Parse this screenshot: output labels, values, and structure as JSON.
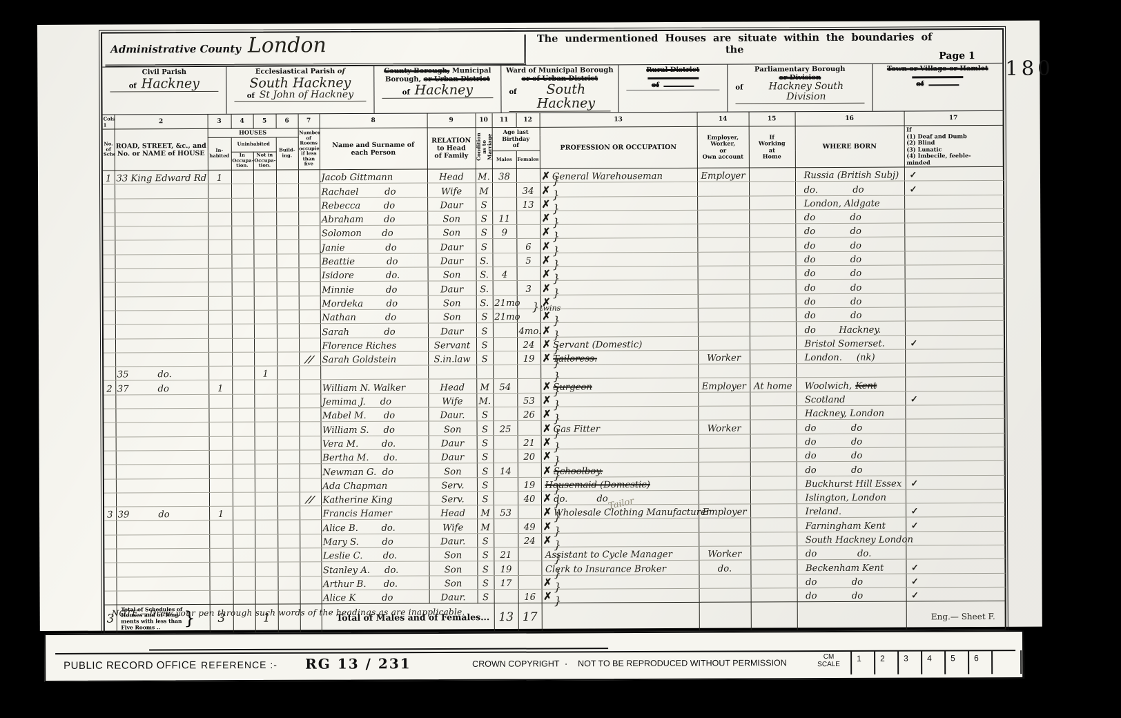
{
  "stamp": "180",
  "header": {
    "admin_label": "Administrative County",
    "admin_value": "London",
    "undermentioned": "The undermentioned Houses are situate within the boundaries of the",
    "page": "Page 1",
    "civil_label": "Civil Parish",
    "civil_of": "of",
    "civil_value": "Hackney",
    "eccl_label": "Ecclesiastical Parish",
    "eccl_of": "of",
    "eccl_value": "South Hackney",
    "eccl_of2": "of",
    "eccl_value2": "St John of Hackney",
    "borough_struck1": "County Borough,",
    "borough_label": "Municipal",
    "borough_label2": "Borough,",
    "borough_struck2": "or Urban District",
    "borough_of": "of",
    "borough_value": "Hackney",
    "ward_label": "Ward of Municipal Borough",
    "ward_struck": "or of Urban District",
    "ward_of": "of",
    "ward_value": "South Hackney",
    "rural_struck": "Rural District",
    "rural_of": "of",
    "parl_label": "Parliamentary Borough",
    "parl_struck": "or Division",
    "parl_of": "of",
    "parl_value": "Hackney South Division",
    "town_struck": "Town or Village or Hamlet",
    "town_of": "of"
  },
  "table": {
    "colnums": [
      "Cols 1",
      "2",
      "3",
      "4",
      "5",
      "6",
      "7",
      "8",
      "9",
      "10",
      "11",
      "12",
      "13",
      "14",
      "15",
      "16",
      "17"
    ],
    "headers": {
      "schedule": "No. of\nSchedule",
      "road": "ROAD, STREET, &c., and\nNo. or NAME of HOUSE",
      "houses": "HOUSES",
      "inhabited": "In-\nhabited",
      "uninhabited": "Uninhabited",
      "in_occ": "In\nOccupa-\ntion.",
      "not_occ": "Not in\nOccupa-\ntion.",
      "building": "Build-ing.",
      "rooms": "Number\nof Rooms\noccupied\nif less\nthan five",
      "name": "Name and Surname of\neach Person",
      "relation": "RELATION\nto Head\nof Family",
      "condition": "Condition\nas to\nMarriage",
      "age": "Age last\nBirthday\nof",
      "males": "Males",
      "females": "Females",
      "profession": "PROFESSION OR OCCUPATION",
      "employer": "Employer,\nWorker,\nor\nOwn account",
      "at_home": "If\nWorking\nat\nHome",
      "born": "WHERE BORN",
      "infirm": "If\n(1) Deaf and Dumb\n(2) Blind\n(3) Lunatic\n(4) Imbecile, feeble-\n      minded"
    },
    "rows": [
      {
        "s": "1",
        "a": "33 King Edward Rd",
        "ih": "1",
        "n": "Jacob Gittmann",
        "r": "Head",
        "c": "M.",
        "m": "38",
        "x": "✗",
        "p": "General Warehouseman",
        "e": "Employer",
        "b": "Russia (British Subj)",
        "t": "✓"
      },
      {
        "n": "Rachael         do",
        "r": "Wife",
        "c": "M",
        "f": "34",
        "x": "✗",
        "b": "do.            do",
        "t": "✓"
      },
      {
        "n": "Rebecca        do",
        "r": "Daur",
        "c": "S",
        "f": "13",
        "x": "✗",
        "b": "London, Aldgate"
      },
      {
        "n": "Abraham       do",
        "r": "Son",
        "c": "S",
        "m": "11",
        "x": "✗",
        "b": "do            do"
      },
      {
        "n": "Solomon       do",
        "r": "Son",
        "c": "S",
        "m": "9",
        "x": "✗",
        "b": "do            do"
      },
      {
        "n": "Janie              do",
        "r": "Daur",
        "c": "S",
        "f": "6",
        "x": "✗",
        "b": "do            do"
      },
      {
        "n": "Beattie           do",
        "r": "Daur",
        "c": "S.",
        "f": "5",
        "x": "✗",
        "b": "do            do"
      },
      {
        "n": "Isidore           do.",
        "r": "Son",
        "c": "S.",
        "m": "4",
        "x": "✗",
        "b": "do            do"
      },
      {
        "n": "Minnie           do",
        "r": "Daur",
        "c": "S.",
        "f": "3",
        "x": "✗",
        "b": "do            do"
      },
      {
        "n": "Mordeka        do",
        "r": "Son",
        "c": "S.",
        "m": "21mo",
        "note": "twins",
        "x": "✗",
        "b": "do            do"
      },
      {
        "n": "Nathan          do",
        "r": "Son",
        "c": "S",
        "m": "21mo",
        "x": "✗",
        "b": "do            do"
      },
      {
        "n": "Sarah            do",
        "r": "Daur",
        "c": "S",
        "f": "4mo.",
        "x": "✗",
        "b": "do        Hackney."
      },
      {
        "n": "Florence Riches",
        "r": "Servant",
        "c": "S",
        "f": "24",
        "x": "✗",
        "p": "Servant (Domestic)",
        "b": "Bristol Somerset.",
        "t": "✓"
      },
      {
        "rm": "//",
        "n": "Sarah Goldstein",
        "r": "S.in.law",
        "c": "S",
        "f": "19",
        "x": "✗",
        "ps": "Tailoress.",
        "e": "Worker",
        "b": "London.     (nk)"
      },
      {
        "a": "35          do.",
        "no": "1"
      },
      {
        "s": "2",
        "a": "37          do",
        "ih": "1",
        "n": "William N. Walker",
        "r": "Head",
        "c": "M",
        "m": "54",
        "x": "✗",
        "ps": "Surgeon",
        "e": "Employer",
        "h": "At home",
        "b": "Woolwich,",
        "bs": "Kent"
      },
      {
        "n": "Jemima J.     do",
        "r": "Wife",
        "c": "M.",
        "f": "53",
        "x": "✗",
        "b": "Scotland",
        "t": "✓"
      },
      {
        "n": "Mabel M.      do",
        "r": "Daur.",
        "c": "S",
        "f": "26",
        "x": "✗",
        "b": "Hackney, London"
      },
      {
        "n": "William S.     do",
        "r": "Son",
        "c": "S",
        "m": "25",
        "x": "✗",
        "p": "Gas Fitter",
        "e": "Worker",
        "b": "do            do"
      },
      {
        "n": "Vera M.        do.",
        "r": "Daur",
        "c": "S",
        "f": "21",
        "x": "✗",
        "b": "do            do"
      },
      {
        "n": "Bertha M.     do.",
        "r": "Daur",
        "c": "S",
        "f": "20",
        "x": "✗",
        "b": "do            do"
      },
      {
        "n": "Newman G.  do",
        "r": "Son",
        "c": "S",
        "m": "14",
        "x": "✗",
        "ps": "Schoolboy.",
        "b": "do            do"
      },
      {
        "n": "Ada Chapman",
        "r": "Serv.",
        "c": "S",
        "f": "19",
        "ps": "Housemaid (Domestic)",
        "b": "Buckhurst Hill Essex",
        "t": "✓"
      },
      {
        "rm": "//",
        "n": "Katherine King",
        "r": "Serv.",
        "c": "S",
        "f": "40",
        "x": "✗",
        "p": "do.          do",
        "b": "Islington, London"
      },
      {
        "s": "3",
        "a": "39          do",
        "ih": "1",
        "n": "Francis Hamer",
        "r": "Head",
        "c": "M",
        "m": "53",
        "x": "✗",
        "p": "Wholesale Clothing Manufacturer",
        "pencil": "Tailor",
        "e": "Employer",
        "b": "Ireland.",
        "t": "✓"
      },
      {
        "n": "Alice B.        do.",
        "r": "Wife",
        "c": "M",
        "f": "49",
        "x": "✗",
        "b": "Farningham Kent",
        "t": "✓"
      },
      {
        "n": "Mary S.        do",
        "r": "Daur.",
        "c": "S",
        "f": "24",
        "x": "✗",
        "b": "South Hackney London"
      },
      {
        "n": "Leslie C.       do.",
        "r": "Son",
        "c": "S",
        "m": "21",
        "p": "Assistant to Cycle Manager",
        "e": "Worker",
        "b": "do              do."
      },
      {
        "n": "Stanley A.     do.",
        "r": "Son",
        "c": "S",
        "m": "19",
        "p": "Clerk to Insurance Broker",
        "e": "do.",
        "b": "Beckenham Kent",
        "t": "✓"
      },
      {
        "n": "Arthur B.      do.",
        "r": "Son",
        "c": "S",
        "m": "17",
        "x": "✗",
        "b": "do            do",
        "t": "✓"
      },
      {
        "n": "Alice K         do",
        "r": "Daur.",
        "c": "S",
        "f": "16",
        "x": "✗",
        "b": "do            do",
        "t": "✓"
      }
    ],
    "totals": {
      "s": "3",
      "label": "Total of Schedules of\nHouses and of Tene-\nments with less than\nFive Rooms    ..",
      "ih": "3",
      "no": "1",
      "mf_label": "Total of Males and of Females...",
      "m": "13",
      "f": "17"
    }
  },
  "note": "NOTE.—Draw your pen through such words of the headings as are inapplicable.",
  "sheet": "Eng.—  Sheet  F.",
  "footer": {
    "office": "PUBLIC RECORD OFFICE",
    "reference_label": "REFERENCE :-",
    "reference": "RG  13 / 231",
    "copyright": "CROWN COPYRIGHT",
    "dot": "·",
    "notice": "NOT TO BE REPRODUCED WITHOUT PERMISSION",
    "scale_label": "CM\nSCALE",
    "ticks": [
      "1",
      "2",
      "3",
      "4",
      "5",
      "6",
      ""
    ]
  }
}
